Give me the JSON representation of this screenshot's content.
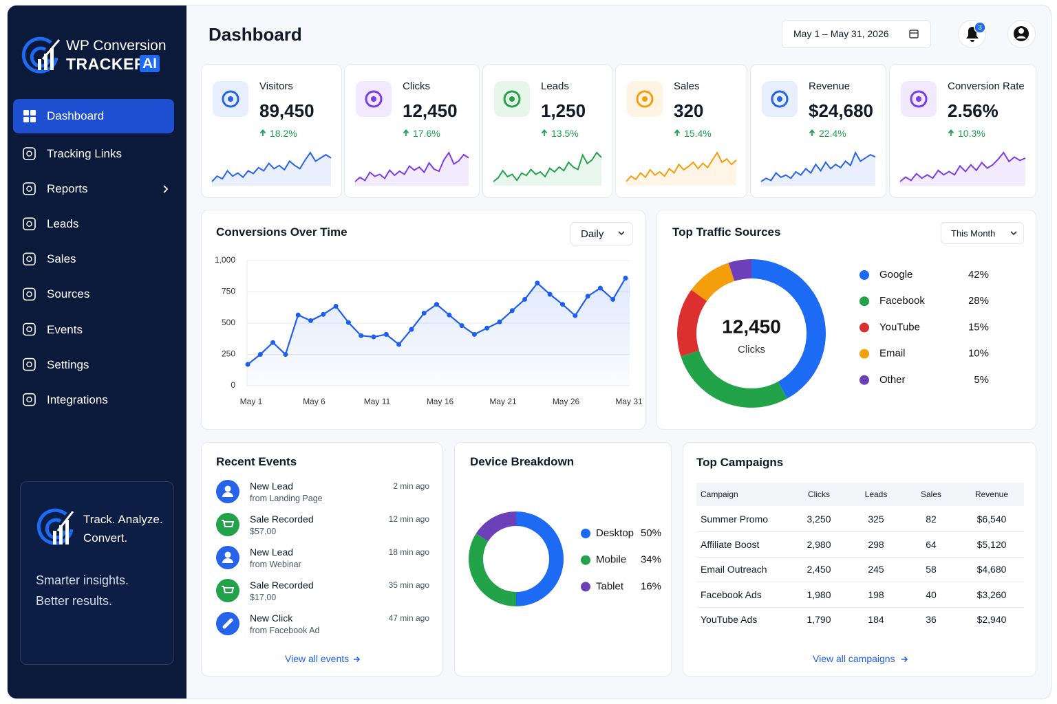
{
  "brand": {
    "name": "WP Conversion",
    "product": "TRACKER",
    "badge": "AI"
  },
  "nav": [
    {
      "label": "Dashboard",
      "active": true
    },
    {
      "label": "Tracking Links"
    },
    {
      "label": "Reports",
      "submenu": true
    },
    {
      "label": "Leads"
    },
    {
      "label": "Sales"
    },
    {
      "label": "Sources"
    },
    {
      "label": "Events"
    },
    {
      "label": "Settings"
    },
    {
      "label": "Integrations"
    }
  ],
  "promo": {
    "headline": [
      "Track. Analyze.",
      "Convert."
    ],
    "tagline": [
      "Smarter insights.",
      "Better results."
    ]
  },
  "header": {
    "title": "Dashboard",
    "date_range": "May 1 – May 31, 2026",
    "notifications": 3
  },
  "kpis": [
    {
      "label": "Visitors",
      "value": "89,450",
      "change": "18.2%",
      "color": "#2563eb",
      "trend": [
        3,
        4,
        3.5,
        5,
        4,
        4.6,
        3.8,
        5,
        4.5,
        5.6,
        5,
        6.4,
        5.4,
        6,
        5.2,
        6.8,
        6,
        5.4,
        7,
        8.4,
        6.8,
        7.4,
        8,
        7.4
      ]
    },
    {
      "label": "Clicks",
      "value": "12,450",
      "change": "17.6%",
      "color": "#7c3aed",
      "trend": [
        3,
        3.8,
        3.2,
        4.8,
        4,
        4.4,
        3.6,
        5.2,
        4.2,
        5,
        4.4,
        6,
        5.2,
        5.8,
        4.8,
        6.6,
        5.4,
        5,
        7.2,
        8.6,
        6.4,
        7,
        8.2,
        7.6
      ]
    },
    {
      "label": "Leads",
      "value": "1,250",
      "change": "13.5%",
      "color": "#22a34a",
      "trend": [
        3,
        3.6,
        4.8,
        3.8,
        4.2,
        3.2,
        4.4,
        4,
        5,
        4.2,
        4.6,
        3.8,
        5.2,
        4.6,
        5.4,
        4.8,
        6.2,
        5.4,
        5,
        7.4,
        6,
        6.6,
        7.8,
        7
      ]
    },
    {
      "label": "Sales",
      "value": "320",
      "change": "15.4%",
      "color": "#f59e0b",
      "trend": [
        3,
        4,
        3.4,
        4.6,
        3.8,
        5.2,
        4.2,
        4.8,
        4,
        5.4,
        4.6,
        6.2,
        5.2,
        5.8,
        6.6,
        5.4,
        6.4,
        5.6,
        7,
        8.4,
        6.6,
        7.2,
        6.2,
        7
      ]
    },
    {
      "label": "Revenue",
      "value": "$24,680",
      "change": "22.4%",
      "color": "#2563eb",
      "trend": [
        3,
        3.6,
        3.2,
        4.6,
        3.8,
        4.2,
        3.6,
        4.8,
        4.2,
        5.4,
        4.6,
        6.2,
        5,
        6.6,
        5.4,
        6.2,
        5.6,
        6.8,
        6,
        8.4,
        6.8,
        7.4,
        8,
        7.6
      ]
    },
    {
      "label": "Conversion Rate",
      "value": "2.56%",
      "change": "10.3%",
      "color": "#7c3aed",
      "trend": [
        3,
        3.8,
        3.2,
        4.4,
        3.6,
        4.2,
        3.6,
        5,
        4.2,
        4.8,
        4.2,
        5.8,
        4.8,
        6,
        5,
        6.4,
        5.4,
        6,
        7,
        8.2,
        6.6,
        7.4,
        6.8,
        7.2
      ]
    }
  ],
  "conversions": {
    "type": "line",
    "title": "Conversions Over Time",
    "period": "Daily",
    "color": "#1d5ef0",
    "categories": [
      "May 1",
      null,
      null,
      null,
      null,
      "May 6",
      null,
      null,
      null,
      null,
      "May 11",
      null,
      null,
      null,
      null,
      "May 16",
      null,
      null,
      null,
      null,
      "May 21",
      null,
      null,
      null,
      null,
      "May 26",
      null,
      null,
      null,
      null,
      "May 31"
    ],
    "values": [
      170,
      250,
      345,
      250,
      565,
      520,
      570,
      635,
      505,
      400,
      390,
      410,
      330,
      450,
      580,
      650,
      565,
      480,
      410,
      460,
      510,
      600,
      690,
      820,
      730,
      650,
      560,
      715,
      780,
      690,
      860
    ],
    "ylim": [
      0,
      1000
    ],
    "yticks": [
      0,
      250,
      500,
      750,
      {
        "value": 1000,
        "label": "1,000"
      }
    ],
    "grid": true
  },
  "traffic": {
    "type": "donut",
    "title": "Top Traffic Sources",
    "period": "This Month",
    "total": "12,450",
    "total_label": "Clicks",
    "categories": [
      "Google",
      "Facebook",
      "YouTube",
      "Email",
      "Other"
    ],
    "values": [
      42,
      28,
      15,
      10,
      5
    ],
    "value_labels": [
      "42%",
      "28%",
      "15%",
      "10%",
      "5%"
    ],
    "colors": [
      "#1d6af5",
      "#22a34a",
      "#dc2f2f",
      "#f59e0b",
      "#6d3fb8"
    ]
  },
  "devices": {
    "type": "donut",
    "title": "Device Breakdown",
    "categories": [
      "Desktop",
      "Mobile",
      "Tablet"
    ],
    "values": [
      50,
      34,
      16
    ],
    "value_labels": [
      "50%",
      "34%",
      "16%"
    ],
    "colors": [
      "#1d6af5",
      "#22a34a",
      "#6d3fb8"
    ]
  },
  "events": {
    "title": "Recent Events",
    "items": [
      {
        "title": "New Lead",
        "detail": "from Landing Page",
        "time": "2 min ago",
        "kind": "lead"
      },
      {
        "title": "Sale Recorded",
        "detail": "$57.00",
        "time": "12 min ago",
        "kind": "sale"
      },
      {
        "title": "New Lead",
        "detail": "from Webinar",
        "time": "18 min ago",
        "kind": "lead"
      },
      {
        "title": "Sale Recorded",
        "detail": "$17.00",
        "time": "35 min ago",
        "kind": "sale"
      },
      {
        "title": "New Click",
        "detail": "from Facebook Ad",
        "time": "47 min ago",
        "kind": "click"
      }
    ],
    "link": "View all events"
  },
  "campaigns": {
    "title": "Top Campaigns",
    "columns": [
      "Campaign",
      "Clicks",
      "Leads",
      "Sales",
      "Revenue"
    ],
    "rows": [
      [
        "Summer Promo",
        "3,250",
        "325",
        "82",
        "$6,540"
      ],
      [
        "Affiliate Boost",
        "2,980",
        "298",
        "64",
        "$5,120"
      ],
      [
        "Email Outreach",
        "2,450",
        "245",
        "58",
        "$4,680"
      ],
      [
        "Facebook Ads",
        "1,980",
        "198",
        "40",
        "$3,260"
      ],
      [
        "YouTube Ads",
        "1,790",
        "184",
        "36",
        "$2,940"
      ]
    ],
    "link": "View all campaigns"
  }
}
